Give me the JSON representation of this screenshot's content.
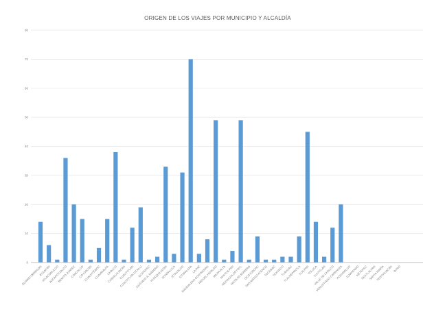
{
  "chart_data": {
    "type": "bar",
    "title": "ORIGEN DE LOS VIAJES POR MUNICIPIO Y ALCALDÍA",
    "xlabel": "",
    "ylabel": "",
    "ylim": [
      0,
      80
    ],
    "yticks": [
      0,
      10,
      20,
      30,
      40,
      50,
      60,
      70,
      80
    ],
    "grid": true,
    "legend": "none",
    "bar_color": "#5b9bd5",
    "categories": [
      "ÁLVARO OBREGÓN",
      "ATIZAPÁN",
      "ATLACOMULCO",
      "AZCAPOTZALCO",
      "BENITO JUÁREZ",
      "COACALCO",
      "COYOACÁN",
      "CUAUHTÉMOC",
      "CUAJIMALPA",
      "CHALCO",
      "CHIMALHUACÁN",
      "CUAUTITLÁN",
      "CUAUTITLÁN IZCALLI",
      "ECATEPEC",
      "GUSTAVO A. MADERO",
      "HUIXQUILUCAN",
      "IXTAPALUCA",
      "IZTACALCO",
      "IZTAPALAPA",
      "LA PAZ",
      "MAGDALENA CONTRERAS",
      "MIGUEL HIDALGO",
      "MILPA ALTA",
      "NAUCALPAN",
      "NEZAHUALCÓYOTL",
      "NICOLÁS ROMERO",
      "OCOYOACAC",
      "SAN MATEO ATENCO",
      "TECÁMAC",
      "TEXCOCO",
      "TLÁHUAC",
      "TLALNEPANTLA",
      "TLALPAN",
      "TOLUCA",
      "TULTITLÁN",
      "VALLE DE CHALCO",
      "VENUSTIANO CARRANZA",
      "XOCHIMILCO",
      "ZUMPANGO",
      "METEPEC",
      "NEXTLALPAN",
      "SANTA MARÍA",
      "TEOTIHUACÁN",
      "OTRO"
    ],
    "values": [
      14,
      6,
      1,
      36,
      20,
      15,
      1,
      5,
      15,
      38,
      1,
      12,
      19,
      1,
      2,
      33,
      3,
      31,
      70,
      3,
      8,
      49,
      1,
      4,
      49,
      1,
      9,
      1,
      1,
      2,
      2,
      9,
      45,
      14,
      2,
      12,
      20,
      0,
      0,
      0,
      0,
      0,
      0,
      0
    ]
  }
}
